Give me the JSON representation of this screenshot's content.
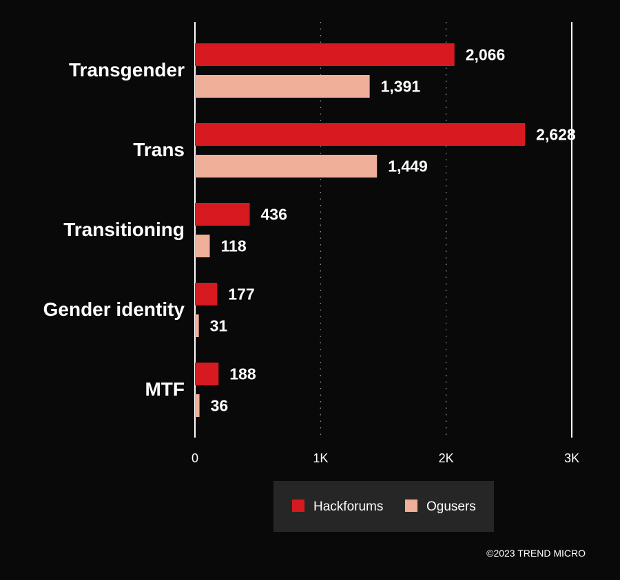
{
  "chart_data": {
    "type": "bar",
    "orientation": "horizontal",
    "categories": [
      "Transgender",
      "Trans",
      "Transitioning",
      "Gender identity",
      "MTF"
    ],
    "series": [
      {
        "name": "Hackforums",
        "values": [
          2066,
          2628,
          436,
          177,
          188
        ],
        "value_labels": [
          "2,066",
          "2,628",
          "436",
          "177",
          "188"
        ],
        "color": "#d71920"
      },
      {
        "name": "Ogusers",
        "values": [
          1391,
          1449,
          118,
          31,
          36
        ],
        "value_labels": [
          "1,391",
          "1,449",
          "118",
          "31",
          "36"
        ],
        "color": "#efaf98"
      }
    ],
    "xlim": [
      0,
      3000
    ],
    "xticks": [
      0,
      1000,
      2000,
      3000
    ],
    "xtick_labels": [
      "0",
      "1K",
      "2K",
      "3K"
    ],
    "grid": "dotted vertical at 1K and 2K",
    "legend_position": "bottom",
    "background": "#0a0909"
  },
  "footer": {
    "copyright": "©2023 TREND MICRO"
  }
}
